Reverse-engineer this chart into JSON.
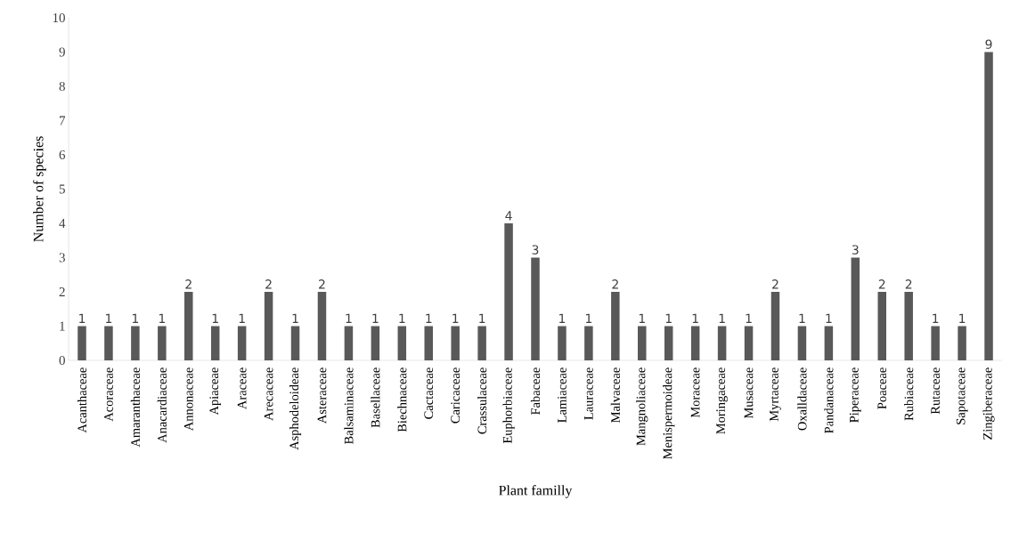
{
  "chart_data": {
    "type": "bar",
    "xlabel": "Plant familly",
    "ylabel": "Number of  species",
    "categories": [
      "Acanthaceae",
      "Acoraceae",
      "Amaranthaceae",
      "Anacardiaceae",
      "Annonaceae",
      "Apiaceae",
      "Araceae",
      "Arecaceae",
      "Asphodeloideae",
      "Asteraceae",
      "Balsaminaceae",
      "Basellaceae",
      "Biechnaceae",
      "Cactaceae",
      "Caricaceae",
      "Crassulaceae",
      "Euphorbiaceae",
      "Fabaceae",
      "Lamiaceae",
      "Lauraceae",
      "Malvaceae",
      "Mangnoliaceae",
      "Menispermoideae",
      "Moraceae",
      "Moringaceae",
      "Musaceae",
      "Myrtaceae",
      "Oxalldaceae",
      "Pandanaceae",
      "Piperaceae",
      "Poaceae",
      "Rubiaceae",
      "Rutaceae",
      "Sapotaceae",
      "Zingiberaceae"
    ],
    "values": [
      1,
      1,
      1,
      1,
      2,
      1,
      1,
      2,
      1,
      2,
      1,
      1,
      1,
      1,
      1,
      1,
      4,
      3,
      1,
      1,
      2,
      1,
      1,
      1,
      1,
      1,
      2,
      1,
      1,
      3,
      2,
      2,
      1,
      1,
      9
    ],
    "color": "#595959",
    "ylim": [
      0,
      10
    ],
    "yticks": [
      0,
      1,
      2,
      3,
      4,
      5,
      6,
      7,
      8,
      9,
      10
    ],
    "data_labels": true
  }
}
